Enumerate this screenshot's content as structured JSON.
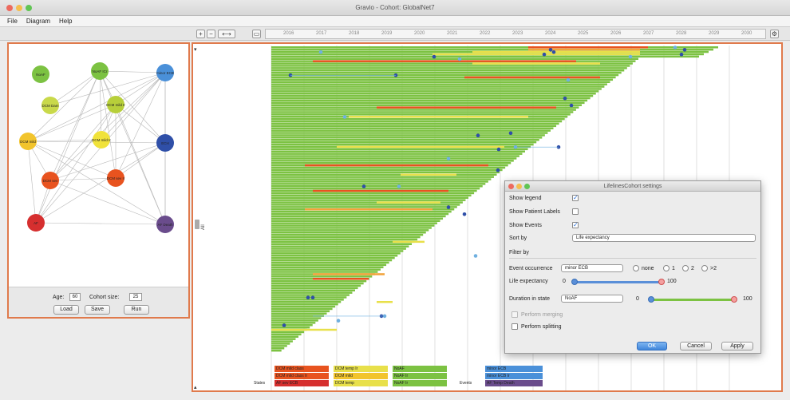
{
  "window": {
    "title": "Gravio - Cohort: GlobalNet7",
    "close_color": "#ed6a5e",
    "minimize_color": "#f5be4f",
    "zoom_color": "#61c554"
  },
  "menu": [
    "File",
    "Diagram",
    "Help"
  ],
  "toolbar": {
    "zoom_in_icon": "magnifier-plus-icon",
    "zoom_out_icon": "magnifier-minus-icon",
    "timeline_years": [
      "2016",
      "2017",
      "2018",
      "2019",
      "2020",
      "2021",
      "2022",
      "2023",
      "2024",
      "2025",
      "2026",
      "2027",
      "2028",
      "2029",
      "2030"
    ]
  },
  "network": {
    "nodes": [
      {
        "id": "noAF",
        "label": "NoAF",
        "color": "#7cc242"
      },
      {
        "id": "noaf_icr",
        "label": "NoAF ICr",
        "color": "#7cc242"
      },
      {
        "id": "minor_ecb",
        "label": "minor ECB",
        "color": "#4a90d9"
      },
      {
        "id": "dcp_dam",
        "label": "DCM Dam",
        "color": "#c9d94a"
      },
      {
        "id": "dcm_mild",
        "label": "DCM mild Ir",
        "color": "#b7cf3a"
      },
      {
        "id": "dcm_mild2",
        "label": "DCM mild",
        "color": "#f2c42c"
      },
      {
        "id": "dcm_mild_ir",
        "label": "DCM mild Ir",
        "color": "#f0e23a"
      },
      {
        "id": "ech",
        "label": "ECH",
        "color": "#2f4fa8"
      },
      {
        "id": "dcm_sev",
        "label": "DCM sev",
        "color": "#e8531f"
      },
      {
        "id": "dcm_sev_ir",
        "label": "DCM sev Ir",
        "color": "#e8531f"
      },
      {
        "id": "af",
        "label": "AF",
        "color": "#d62f2f"
      },
      {
        "id": "ap_death",
        "label": "AF Death",
        "color": "#6a4c8c"
      }
    ]
  },
  "controls": {
    "age_label": "Age:",
    "age_value": "60",
    "cohort_label": "Cohort size:",
    "cohort_value": "25",
    "load": "Load",
    "save": "Save",
    "run": "Run"
  },
  "chart": {
    "axis_label": "All",
    "bar_colors": {
      "green": "#7cc242",
      "yellow": "#e8e04a",
      "red": "#e8531f",
      "orange": "#f2a33a"
    },
    "event_color": "#2f4fa8",
    "event_light_color": "#6fb0e0"
  },
  "dialog": {
    "title": "LifelinesCohort settings",
    "show_legend": "Show legend",
    "show_patient_labels": "Show Patient Labels",
    "show_events": "Show Events",
    "sort_by": "Sort by",
    "sort_value": "Life expectancy",
    "filter_by": "Filter by",
    "event_occurrence": "Event occurrence",
    "event_value": "minor ECB",
    "radio_none": "none",
    "radio_1": "1",
    "radio_2": "2",
    "radio_gt2": ">2",
    "life_expectancy": "Life expectancy",
    "le_min": "0",
    "le_max": "100",
    "duration_in_state": "Duration in state",
    "state_value": "NoAF",
    "dur_min": "0",
    "dur_max": "100",
    "perform_merging": "Perform merging",
    "perform_splitting": "Perform splitting",
    "ok": "OK",
    "cancel": "Cancel",
    "apply": "Apply"
  },
  "legend": {
    "states_label": "States",
    "events_label": "Events",
    "items": [
      {
        "label": "DCM mild class",
        "color": "#e8531f"
      },
      {
        "label": "DCM mild class Ir",
        "color": "#e8531f"
      },
      {
        "label": "AF sev ECB",
        "color": "#d62f2f"
      },
      {
        "label": "DCM temp Ir",
        "color": "#e8e04a"
      },
      {
        "label": "DCM mild",
        "color": "#f2c42c"
      },
      {
        "label": "DCM temp",
        "color": "#e8e04a"
      },
      {
        "label": "NoAF",
        "color": "#7cc242"
      },
      {
        "label": "NoAF Ir",
        "color": "#7cc242"
      },
      {
        "label": "NoAF Ir",
        "color": "#7cc242"
      },
      {
        "label": "minor ECB",
        "color": "#4a90d9"
      },
      {
        "label": "minor ECB Ir",
        "color": "#4a90d9"
      },
      {
        "label": "AF Temp Death",
        "color": "#6a4c8c"
      }
    ]
  }
}
